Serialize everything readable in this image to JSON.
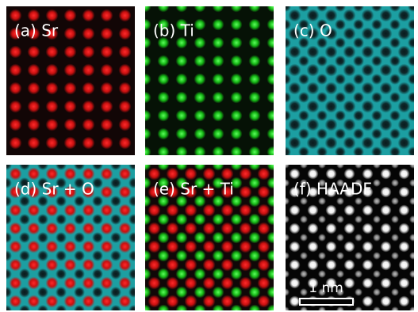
{
  "panels": [
    {
      "label": "(a) Sr"
    },
    {
      "label": "(b) Ti"
    },
    {
      "label": "(c) O"
    },
    {
      "label": "(d) Sr + O"
    },
    {
      "label": "(e) Sr + Ti"
    },
    {
      "label": "(f) HAADF"
    }
  ],
  "scale_bar": {
    "label": "1 nm"
  }
}
